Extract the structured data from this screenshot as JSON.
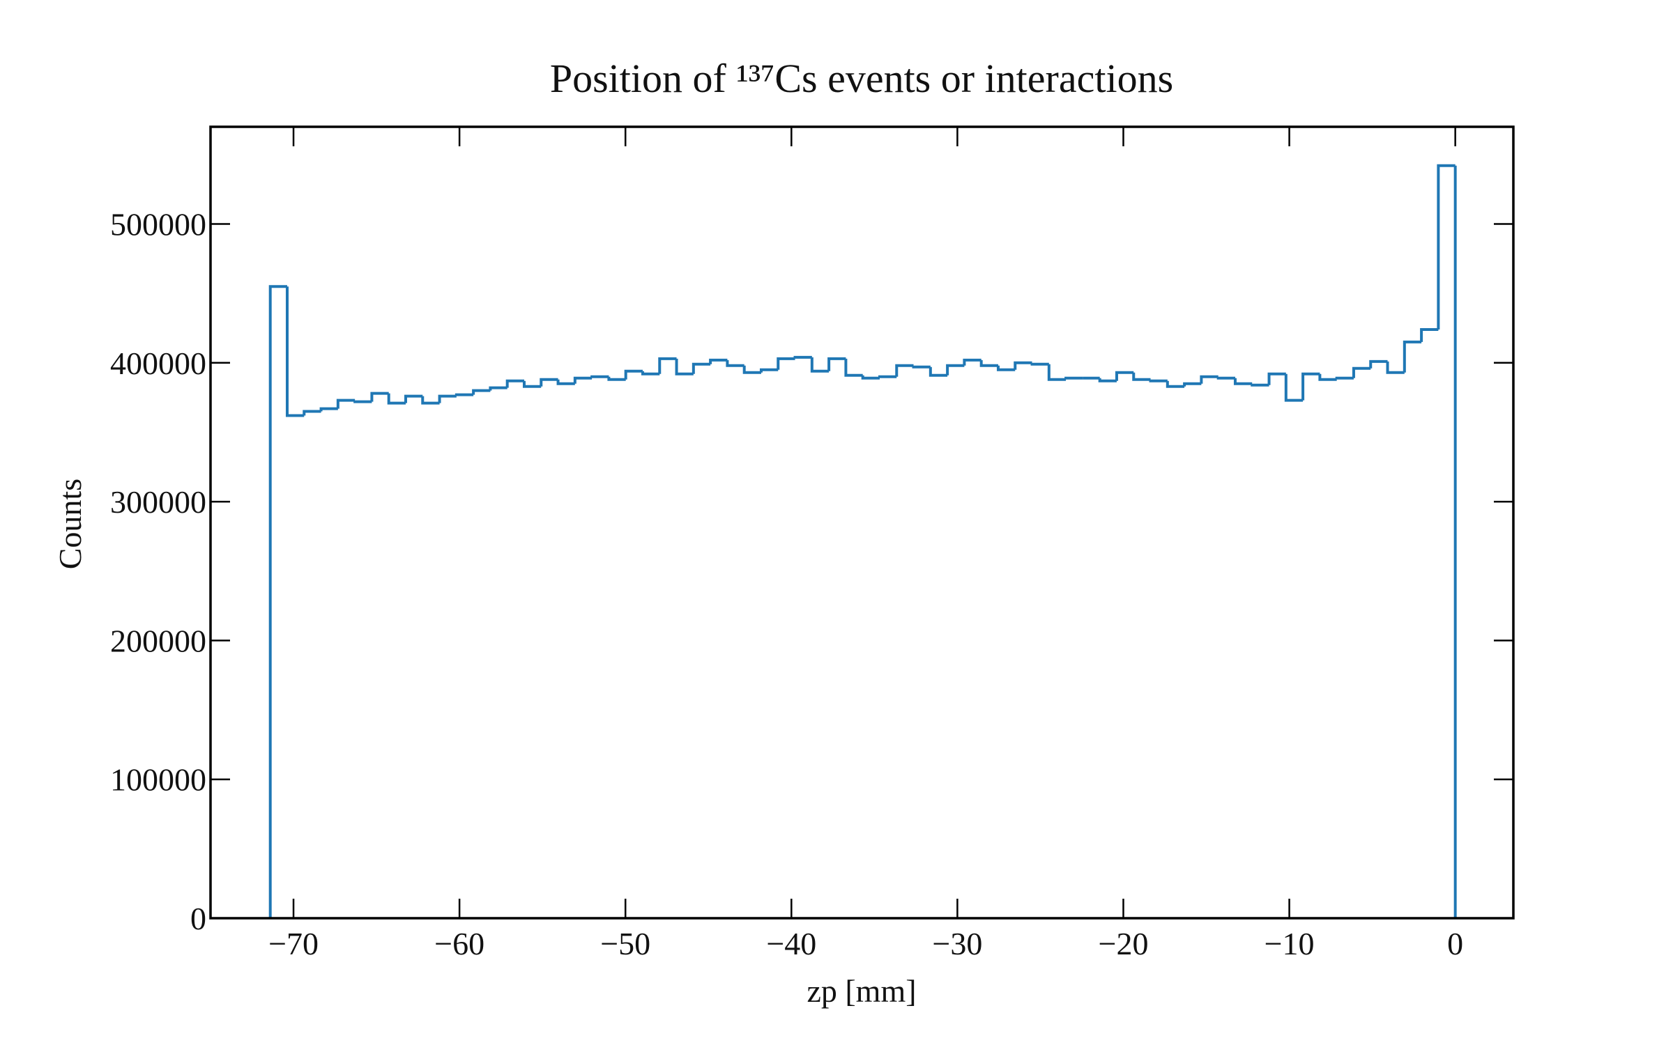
{
  "chart_data": {
    "type": "histogram",
    "title": "Position of ¹³⁷Cs events or interactions",
    "xlabel": "zp [mm]",
    "ylabel": "Counts",
    "color": "#1f77b4",
    "bins": [
      -71.4,
      -70.38,
      -69.36,
      -68.34,
      -67.32,
      -66.3,
      -65.28,
      -64.26,
      -63.24,
      -62.22,
      -61.2,
      -60.18,
      -59.16,
      -58.14,
      -57.12,
      -56.1,
      -55.08,
      -54.06,
      -53.04,
      -52.02,
      -51,
      -49.98,
      -48.96,
      -47.94,
      -46.92,
      -45.9,
      -44.88,
      -43.86,
      -42.84,
      -41.82,
      -40.8,
      -39.78,
      -38.76,
      -37.74,
      -36.72,
      -35.7,
      -34.68,
      -33.66,
      -32.64,
      -31.62,
      -30.6,
      -29.58,
      -28.56,
      -27.54,
      -26.52,
      -25.5,
      -24.48,
      -23.46,
      -22.44,
      -21.42,
      -20.4,
      -19.38,
      -18.36,
      -17.34,
      -16.32,
      -15.3,
      -14.28,
      -13.26,
      -12.24,
      -11.22,
      -10.2,
      -9.18,
      -8.16,
      -7.14,
      -6.12,
      -5.1,
      -4.08,
      -3.06,
      -2.04,
      -1.02,
      0
    ],
    "counts": [
      455000,
      362000,
      365000,
      367000,
      373000,
      372000,
      378000,
      371000,
      376000,
      371000,
      376000,
      377000,
      380000,
      382000,
      387000,
      383000,
      388000,
      385000,
      389000,
      390000,
      388000,
      394000,
      392000,
      403000,
      392000,
      399000,
      402000,
      398000,
      393000,
      395000,
      403000,
      404000,
      394000,
      403000,
      391000,
      389000,
      390000,
      398000,
      397000,
      391000,
      398000,
      402000,
      398000,
      395000,
      400000,
      399000,
      388000,
      389000,
      389000,
      387000,
      393000,
      388000,
      387000,
      383000,
      385000,
      390000,
      389000,
      385000,
      384000,
      392000,
      373000,
      392000,
      388000,
      389000,
      396000,
      401000,
      393000,
      415000,
      424000,
      542000
    ],
    "xlim": [
      -75,
      3.5
    ],
    "ylim": [
      0,
      570000
    ],
    "xticks": [
      {
        "value": -70,
        "label": "−70"
      },
      {
        "value": -60,
        "label": "−60"
      },
      {
        "value": -50,
        "label": "−50"
      },
      {
        "value": -40,
        "label": "−40"
      },
      {
        "value": -30,
        "label": "−30"
      },
      {
        "value": -20,
        "label": "−20"
      },
      {
        "value": -10,
        "label": "−10"
      },
      0
    ],
    "yticks": [
      0,
      100000,
      200000,
      300000,
      400000,
      500000
    ]
  }
}
